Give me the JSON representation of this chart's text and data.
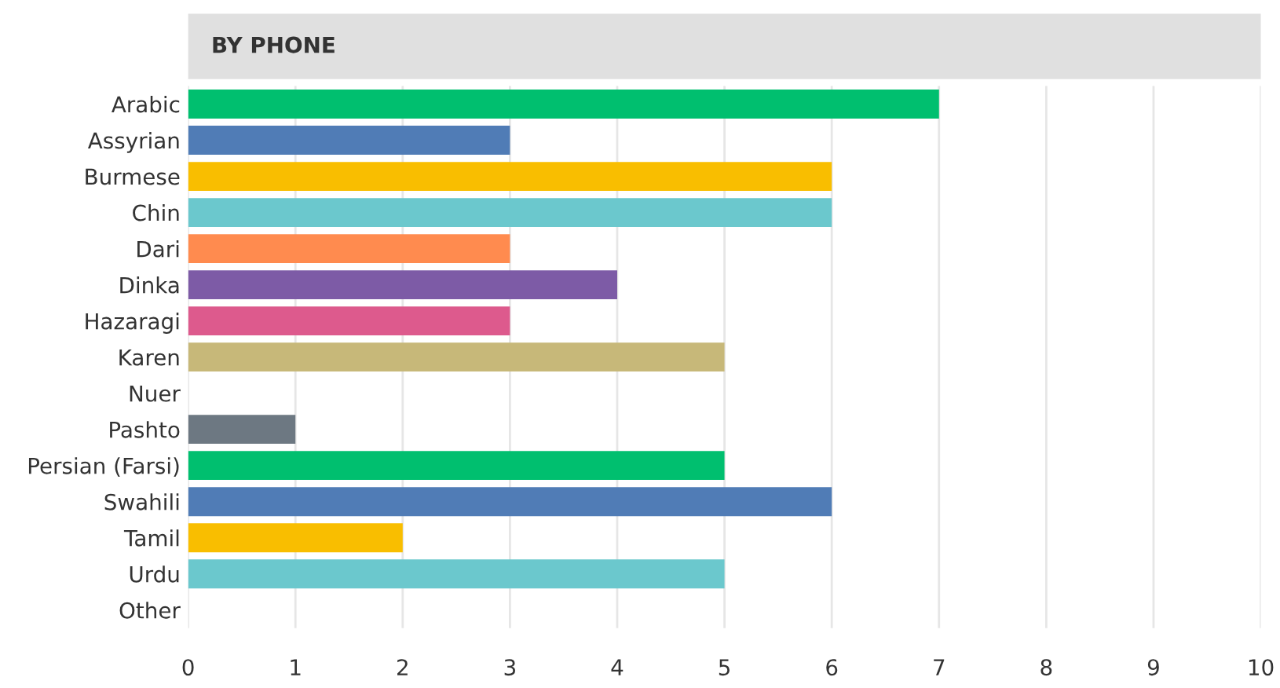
{
  "chart_data": {
    "type": "bar",
    "orientation": "horizontal",
    "title": "BY PHONE",
    "categories": [
      "Arabic",
      "Assyrian",
      "Burmese",
      "Chin",
      "Dari",
      "Dinka",
      "Hazaragi",
      "Karen",
      "Nuer",
      "Pashto",
      "Persian (Farsi)",
      "Swahili",
      "Tamil",
      "Urdu",
      "Other"
    ],
    "values": [
      7,
      3,
      6,
      6,
      3,
      4,
      3,
      5,
      0,
      1,
      5,
      6,
      2,
      5,
      0
    ],
    "colors": [
      "#00bf6f",
      "#507cb6",
      "#f9be00",
      "#6bc8cd",
      "#ff8b4f",
      "#7d5ba6",
      "#dd5a8d",
      "#c7b879",
      "#6d7882",
      "#6d7882",
      "#00bf6f",
      "#507cb6",
      "#f9be00",
      "#6bc8cd",
      "#ff8b4f"
    ],
    "xlim": [
      0,
      10
    ],
    "xticks": [
      0,
      1,
      2,
      3,
      4,
      5,
      6,
      7,
      8,
      9,
      10
    ],
    "grid": "x",
    "legend": false
  }
}
